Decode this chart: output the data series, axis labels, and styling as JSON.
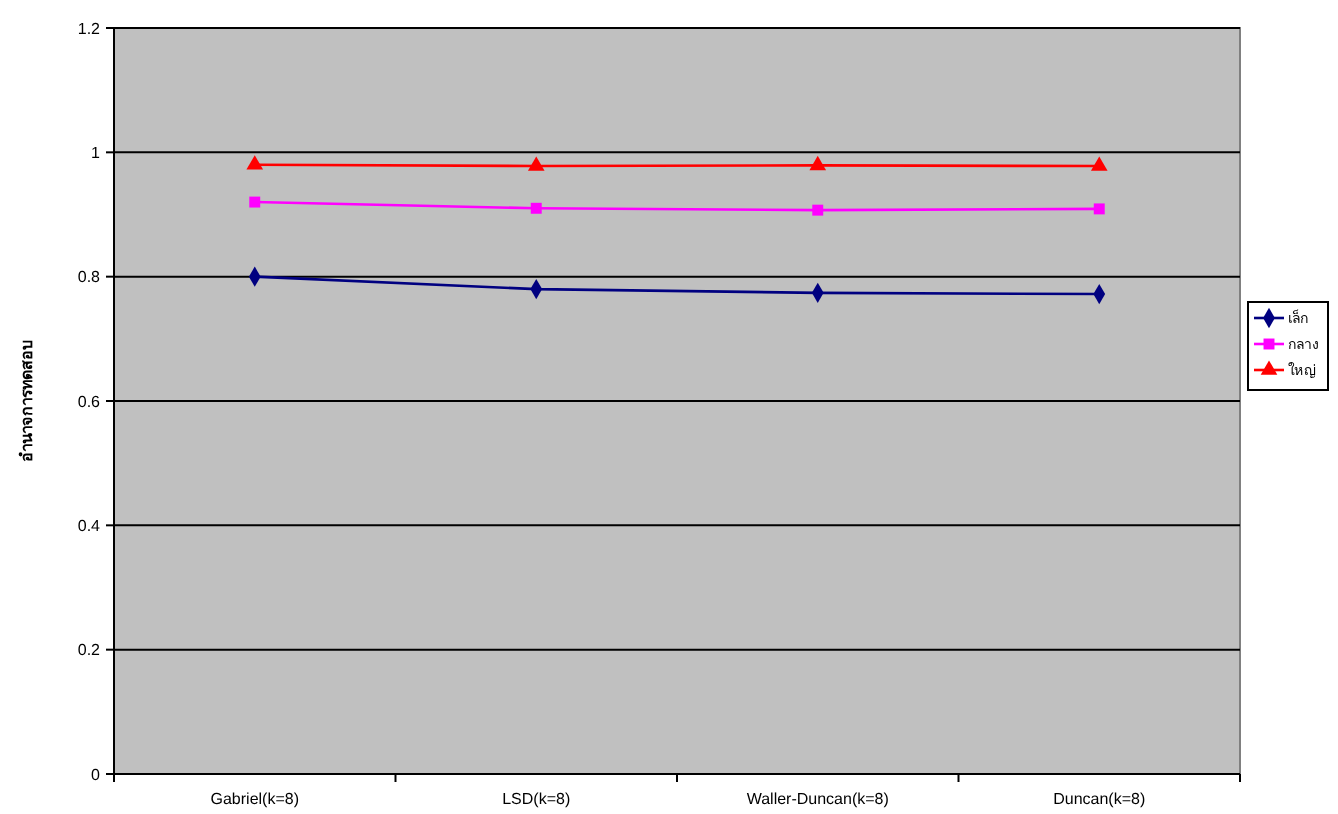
{
  "chart_data": {
    "type": "line",
    "ylabel": "อำนาจการทดสอบ",
    "categories": [
      "Gabriel(k=8)",
      "LSD(k=8)",
      "Waller-Duncan(k=8)",
      "Duncan(k=8)"
    ],
    "series": [
      {
        "name": "เล็ก",
        "color": "#000080",
        "marker": "diamond",
        "values": [
          0.8,
          0.78,
          0.774,
          0.772
        ]
      },
      {
        "name": "กลาง",
        "color": "#ff00ff",
        "marker": "square",
        "values": [
          0.92,
          0.91,
          0.907,
          0.909
        ]
      },
      {
        "name": "ใหญ่",
        "color": "#ff0000",
        "marker": "triangle",
        "values": [
          0.98,
          0.978,
          0.979,
          0.978
        ]
      }
    ],
    "ylim": [
      0,
      1.2
    ],
    "yticks": [
      0,
      0.2,
      0.4,
      0.6,
      0.8,
      1,
      1.2
    ],
    "grid": "y",
    "legend": "right"
  }
}
